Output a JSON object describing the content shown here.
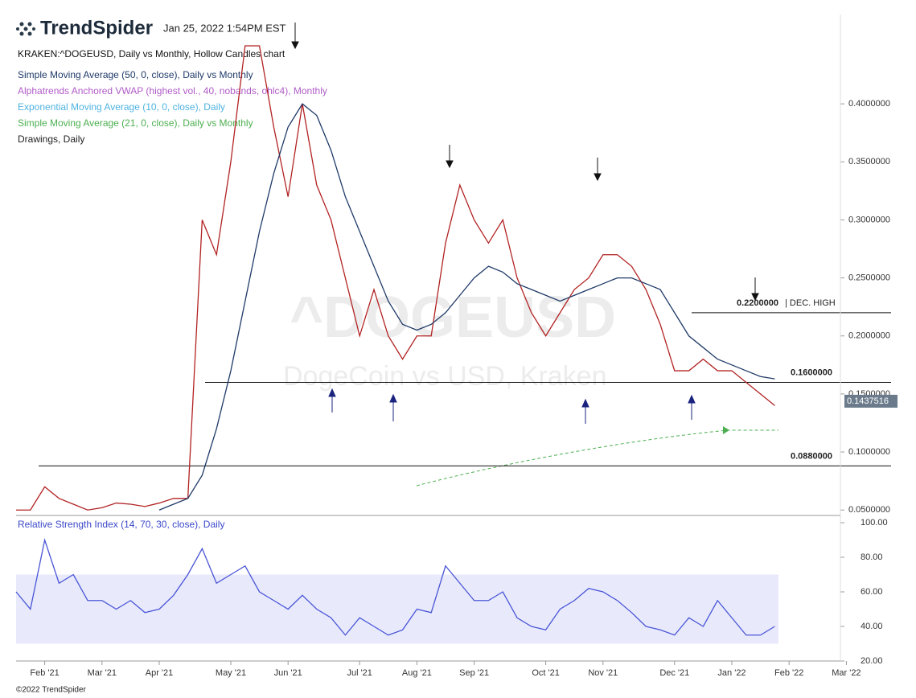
{
  "header": {
    "logo": "TrendSpider",
    "timestamp": "Jan 25, 2022 1:54PM EST",
    "subtitle": "KRAKEN:^DOGEUSD, Daily vs Monthly, Hollow Candles chart",
    "indicators": [
      {
        "name": "Simple Moving Average (50, 0, close), Daily vs Monthly",
        "color": "#1f3a68"
      },
      {
        "name": "Alphatrends Anchored VWAP (highest vol., 40, nobands, ohlc4), Monthly",
        "color": "#b05cc8"
      },
      {
        "name": "Exponential Moving Average (10, 0, close), Daily",
        "color": "#4fb3e0"
      },
      {
        "name": "Simple Moving Average (21, 0, close), Daily vs Monthly",
        "color": "#4caf50"
      },
      {
        "name": "Drawings, Daily",
        "color": "#222222"
      }
    ]
  },
  "watermark": {
    "symbol": "^DOGEUSD",
    "description": "DogeCoin vs USD, Kraken"
  },
  "footer": "©2022 TrendSpider",
  "chart_data": [
    {
      "type": "line",
      "categories": [
        null,
        null,
        "Feb '21",
        null,
        null,
        null,
        "Mar '21",
        null,
        null,
        null,
        "Apr '21",
        null,
        null,
        null,
        null,
        "May '21",
        null,
        null,
        null,
        "Jun '21",
        null,
        null,
        null,
        null,
        "Jul '21",
        null,
        null,
        null,
        "Aug '21",
        null,
        null,
        null,
        "Sep '21",
        null,
        null,
        null,
        null,
        "Oct '21",
        null,
        null,
        null,
        "Nov '21",
        null,
        null,
        null,
        null,
        "Dec '21",
        null,
        null,
        null,
        "Jan '22",
        null,
        null,
        null,
        "Feb '22",
        null,
        null,
        null,
        "Mar '22"
      ],
      "series": [
        {
          "name": "KRAKEN:^DOGEUSD",
          "color": "#b22222",
          "values": [
            0.05,
            0.05,
            0.07,
            0.06,
            0.055,
            0.05,
            0.052,
            0.056,
            0.055,
            0.053,
            0.056,
            0.06,
            0.06,
            0.3,
            0.27,
            0.35,
            0.45,
            0.45,
            0.38,
            0.32,
            0.4,
            0.33,
            0.3,
            0.25,
            0.2,
            0.24,
            0.2,
            0.18,
            0.2,
            0.2,
            0.28,
            0.33,
            0.3,
            0.28,
            0.3,
            0.25,
            0.22,
            0.2,
            0.22,
            0.24,
            0.25,
            0.27,
            0.27,
            0.26,
            0.24,
            0.21,
            0.17,
            0.17,
            0.18,
            0.17,
            0.17,
            0.16,
            0.15,
            0.14,
            null,
            null,
            null,
            null,
            null
          ]
        },
        {
          "name": "Simple Moving Average (50, 0, close), Daily vs Monthly",
          "color": "#1f3a68",
          "values": [
            null,
            null,
            null,
            null,
            null,
            null,
            null,
            null,
            null,
            null,
            0.05,
            0.055,
            0.06,
            0.08,
            0.12,
            0.17,
            0.23,
            0.29,
            0.34,
            0.38,
            0.4,
            0.39,
            0.36,
            0.32,
            0.29,
            0.26,
            0.23,
            0.21,
            0.205,
            0.21,
            0.22,
            0.235,
            0.25,
            0.26,
            0.255,
            0.245,
            0.24,
            0.235,
            0.23,
            0.235,
            0.24,
            0.245,
            0.25,
            0.25,
            0.245,
            0.24,
            0.22,
            0.2,
            0.19,
            0.18,
            0.175,
            0.17,
            0.165,
            0.163,
            null,
            null,
            null,
            null,
            null
          ]
        }
      ],
      "ylim": [
        0.046,
        0.477
      ],
      "yticks": [
        {
          "value": 0.05,
          "label": "0.0500000"
        },
        {
          "value": 0.1,
          "label": "0.1000000"
        },
        {
          "value": 0.15,
          "label": "0.1500000"
        },
        {
          "value": 0.2,
          "label": "0.2000000"
        },
        {
          "value": 0.25,
          "label": "0.2500000"
        },
        {
          "value": 0.3,
          "label": "0.3000000"
        },
        {
          "value": 0.35,
          "label": "0.3500000"
        },
        {
          "value": 0.4,
          "label": "0.4000000"
        }
      ],
      "levels": [
        {
          "value": 0.22,
          "label": "0.2200000"
        },
        {
          "value": 0.16,
          "label": "0.1600000"
        },
        {
          "value": 0.088,
          "label": "0.0880000"
        }
      ],
      "annotation": "| DEC. HIGH",
      "last_price": 0.1437516,
      "grid": false
    },
    {
      "type": "line",
      "title": "Relative Strength Index (14, 70, 30, close), Daily",
      "series": [
        {
          "name": "RSI",
          "color": "#4a55d6",
          "values": [
            60,
            50,
            90,
            65,
            70,
            55,
            55,
            50,
            55,
            48,
            50,
            58,
            70,
            85,
            65,
            70,
            75,
            60,
            55,
            50,
            58,
            50,
            45,
            35,
            45,
            40,
            35,
            38,
            50,
            48,
            75,
            65,
            55,
            55,
            60,
            45,
            40,
            38,
            50,
            55,
            62,
            60,
            55,
            48,
            40,
            38,
            35,
            45,
            40,
            55,
            45,
            35,
            35,
            40,
            null,
            null,
            null,
            null,
            null
          ]
        }
      ],
      "ylim": [
        20,
        100
      ],
      "yticks": [
        {
          "value": 20,
          "label": "20.00"
        },
        {
          "value": 40,
          "label": "40.00"
        },
        {
          "value": 60,
          "label": "60.00"
        },
        {
          "value": 80,
          "label": "80.00"
        },
        {
          "value": 100,
          "label": "100.00"
        }
      ],
      "band": [
        30,
        70
      ]
    }
  ]
}
